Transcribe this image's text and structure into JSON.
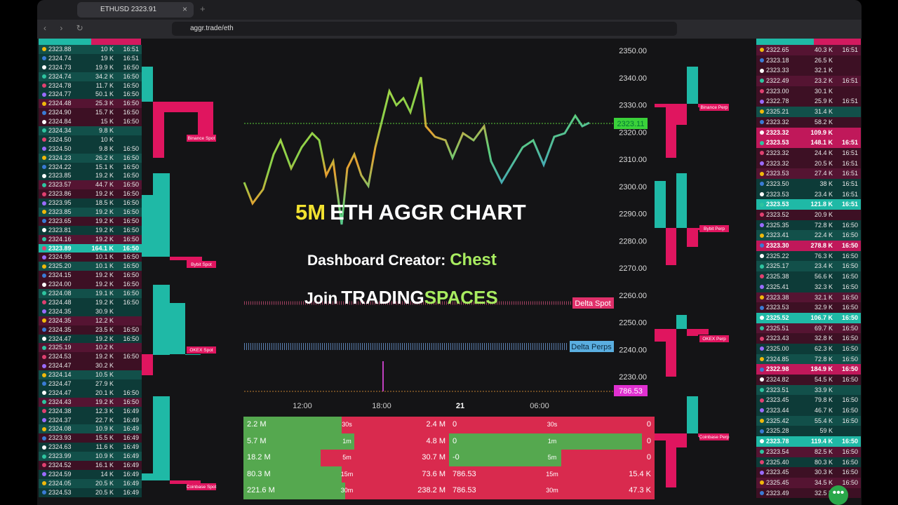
{
  "browser": {
    "tab_title": "ETHUSD 2323.91",
    "url": "aggr.trade/eth"
  },
  "left_trades": [
    [
      "2323.88",
      "10 K",
      "16:51"
    ],
    [
      "2324.74",
      "19 K",
      "16:51"
    ],
    [
      "2324.73",
      "19.9 K",
      "16:50"
    ],
    [
      "2324.74",
      "34.2 K",
      "16:50"
    ],
    [
      "2324.78",
      "11.7 K",
      "16:50"
    ],
    [
      "2324.77",
      "50.1 K",
      "16:50"
    ],
    [
      "2324.48",
      "25.3 K",
      "16:50"
    ],
    [
      "2324.90",
      "15.7 K",
      "16:50"
    ],
    [
      "2324.84",
      "15 K",
      "16:50"
    ],
    [
      "2324.34",
      "9.8 K"
    ],
    [
      "2324.50",
      "10 K"
    ],
    [
      "2324.50",
      "9.8 K",
      "16:50"
    ],
    [
      "2324.23",
      "26.2 K",
      "16:50"
    ],
    [
      "2324.22",
      "15.1 K",
      "16:50"
    ],
    [
      "2323.85",
      "19.2 K",
      "16:50"
    ],
    [
      "2323.57",
      "44.7 K",
      "16:50"
    ],
    [
      "2323.86",
      "19.2 K",
      "16:50"
    ],
    [
      "2323.95",
      "18.5 K",
      "16:50"
    ],
    [
      "2323.85",
      "19.2 K",
      "16:50"
    ],
    [
      "2323.65",
      "19.2 K",
      "16:50"
    ],
    [
      "2323.81",
      "19.2 K",
      "16:50"
    ],
    [
      "2324.16",
      "19.2 K",
      "16:50"
    ],
    [
      "2323.89",
      "164.1 K",
      "16:50"
    ],
    [
      "2324.95",
      "10.1 K",
      "16:50"
    ],
    [
      "2325.20",
      "10.1 K",
      "16:50"
    ],
    [
      "2324.15",
      "19.2 K",
      "16:50"
    ],
    [
      "2324.00",
      "19.2 K",
      "16:50"
    ],
    [
      "2324.08",
      "19.1 K",
      "16:50"
    ],
    [
      "2324.48",
      "19.2 K",
      "16:50"
    ],
    [
      "2324.35",
      "30.9 K"
    ],
    [
      "2324.35",
      "12.2 K"
    ],
    [
      "2324.35",
      "23.5 K",
      "16:50"
    ],
    [
      "2324.47",
      "19.2 K",
      "16:50"
    ],
    [
      "2325.19",
      "10.2 K"
    ],
    [
      "2324.53",
      "19.2 K",
      "16:50"
    ],
    [
      "2324.47",
      "30.2 K"
    ],
    [
      "2324.14",
      "10.5 K"
    ],
    [
      "2324.47",
      "27.9 K"
    ],
    [
      "2324.47",
      "20.1 K",
      "16:50"
    ],
    [
      "2324.43",
      "19.2 K",
      "16:50"
    ],
    [
      "2324.38",
      "12.3 K",
      "16:49"
    ],
    [
      "2324.37",
      "22.7 K",
      "16:49"
    ],
    [
      "2324.08",
      "10.9 K",
      "16:49"
    ],
    [
      "2323.93",
      "15.5 K",
      "16:49"
    ],
    [
      "2324.63",
      "11.6 K",
      "16:49"
    ],
    [
      "2323.99",
      "10.9 K",
      "16:49"
    ],
    [
      "2324.52",
      "16.1 K",
      "16:49"
    ],
    [
      "2324.59",
      "14 K",
      "16:49"
    ],
    [
      "2324.05",
      "20.5 K",
      "16:49"
    ],
    [
      "2324.53",
      "20.5 K",
      "16:49"
    ]
  ],
  "right_trades": [
    [
      "2322.65",
      "40.3 K",
      "16:51"
    ],
    [
      "2323.18",
      "26.5 K"
    ],
    [
      "2323.33",
      "32.1 K"
    ],
    [
      "2322.49",
      "23.2 K",
      "16:51"
    ],
    [
      "2323.00",
      "30.1 K"
    ],
    [
      "2322.78",
      "25.9 K",
      "16:51"
    ],
    [
      "2325.21",
      "31.4 K"
    ],
    [
      "2323.32",
      "58.2 K"
    ],
    [
      "2323.32",
      "109.9 K"
    ],
    [
      "2323.53",
      "148.1 K",
      "16:51"
    ],
    [
      "2323.32",
      "24.4 K",
      "16:51"
    ],
    [
      "2323.32",
      "20.5 K",
      "16:51"
    ],
    [
      "2323.53",
      "27.4 K",
      "16:51"
    ],
    [
      "2323.50",
      "38 K",
      "16:51"
    ],
    [
      "2323.53",
      "23.4 K",
      "16:51"
    ],
    [
      "2323.53",
      "121.8 K",
      "16:51"
    ],
    [
      "2323.52",
      "20.9 K"
    ],
    [
      "2325.35",
      "72.8 K",
      "16:50"
    ],
    [
      "2323.41",
      "22.4 K",
      "16:50"
    ],
    [
      "2323.30",
      "278.8 K",
      "16:50"
    ],
    [
      "2325.22",
      "76.3 K",
      "16:50"
    ],
    [
      "2325.17",
      "23.4 K",
      "16:50"
    ],
    [
      "2325.38",
      "56.6 K",
      "16:50"
    ],
    [
      "2325.41",
      "32.3 K",
      "16:50"
    ],
    [
      "2323.38",
      "32.1 K",
      "16:50"
    ],
    [
      "2323.53",
      "32.9 K",
      "16:50"
    ],
    [
      "2325.52",
      "106.7 K",
      "16:50"
    ],
    [
      "2325.51",
      "69.7 K",
      "16:50"
    ],
    [
      "2323.43",
      "32.8 K",
      "16:50"
    ],
    [
      "2325.00",
      "62.3 K",
      "16:50"
    ],
    [
      "2324.85",
      "72.8 K",
      "16:50"
    ],
    [
      "2322.98",
      "184.9 K",
      "16:50"
    ],
    [
      "2324.82",
      "54.5 K",
      "16:50"
    ],
    [
      "2323.51",
      "33.9 K"
    ],
    [
      "2323.45",
      "79.8 K",
      "16:50"
    ],
    [
      "2323.44",
      "46.7 K",
      "16:50"
    ],
    [
      "2325.42",
      "55.4 K",
      "16:50"
    ],
    [
      "2325.28",
      "59 K"
    ],
    [
      "2323.78",
      "119.4 K",
      "16:50"
    ],
    [
      "2323.54",
      "82.5 K",
      "16:50"
    ],
    [
      "2325.40",
      "80.3 K",
      "16:50"
    ],
    [
      "2323.45",
      "30.3 K",
      "16:50"
    ],
    [
      "2325.45",
      "34.5 K",
      "16:50"
    ],
    [
      "2323.49",
      "32.5 K"
    ]
  ],
  "chart": {
    "price_axis": [
      "2350.00",
      "2340.00",
      "2330.00",
      "2320.00",
      "2310.00",
      "2300.00",
      "2290.00",
      "2280.00",
      "2270.00",
      "2260.00",
      "2250.00",
      "2240.00",
      "2230.00"
    ],
    "time_axis": [
      "12:00",
      "18:00",
      "21",
      "06:00"
    ],
    "last_price": "2323.11",
    "delta_spot": "Delta Spot",
    "delta_perps": "Delta Perps",
    "volume_label": "786.53"
  },
  "overlay": {
    "headline_highlight": "5M",
    "headline": "ETH AGGR CHART",
    "creator_label": "Dashboard Creator:",
    "creator": "Chest",
    "join": "Join",
    "brand_1": "TRADING",
    "brand_2": "SPACES"
  },
  "exchanges_left": [
    "Binance Spot",
    "Bybit Spot",
    "OKEX Spot",
    "Coinbase Spot"
  ],
  "exchanges_right": [
    "Binance Perp",
    "Bybit Perp",
    "OKEX Perp",
    "Coinbase Perp"
  ],
  "stats": {
    "rows": [
      [
        "2.2 M",
        "30s",
        "2.4 M",
        "0",
        "30s",
        "0"
      ],
      [
        "5.7 M",
        "1m",
        "4.8 M",
        "0",
        "1m",
        "0"
      ],
      [
        "18.2 M",
        "5m",
        "30.7 M",
        "-0",
        "5m",
        "0"
      ],
      [
        "80.3 M",
        "15m",
        "73.6 M",
        "786.53",
        "15m",
        "15.4 K"
      ],
      [
        "221.6 M",
        "30m",
        "238.2 M",
        "786.53",
        "30m",
        "47.3 K"
      ]
    ]
  }
}
